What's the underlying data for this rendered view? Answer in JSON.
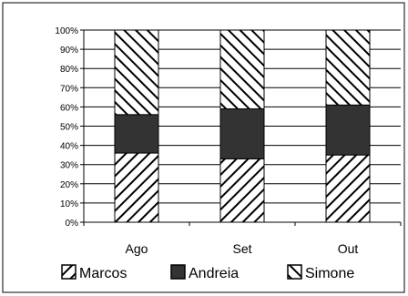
{
  "chart_data": {
    "type": "bar",
    "stacked": true,
    "normalized": true,
    "categories": [
      "Ago",
      "Set",
      "Out"
    ],
    "series": [
      {
        "name": "Marcos",
        "values": [
          36,
          33,
          35
        ],
        "pattern": "diagonal-up"
      },
      {
        "name": "Andreia",
        "values": [
          20,
          26,
          26
        ],
        "pattern": "solid"
      },
      {
        "name": "Simone",
        "values": [
          44,
          41,
          39
        ],
        "pattern": "diagonal-down"
      }
    ],
    "ylim": [
      0,
      100
    ],
    "yticks": [
      "0%",
      "10%",
      "20%",
      "30%",
      "40%",
      "50%",
      "60%",
      "70%",
      "80%",
      "90%",
      "100%"
    ],
    "grid": true,
    "legend_position": "bottom",
    "colors": {
      "fill": "#ffffff",
      "solid": "#333333",
      "line": "#000000"
    }
  }
}
